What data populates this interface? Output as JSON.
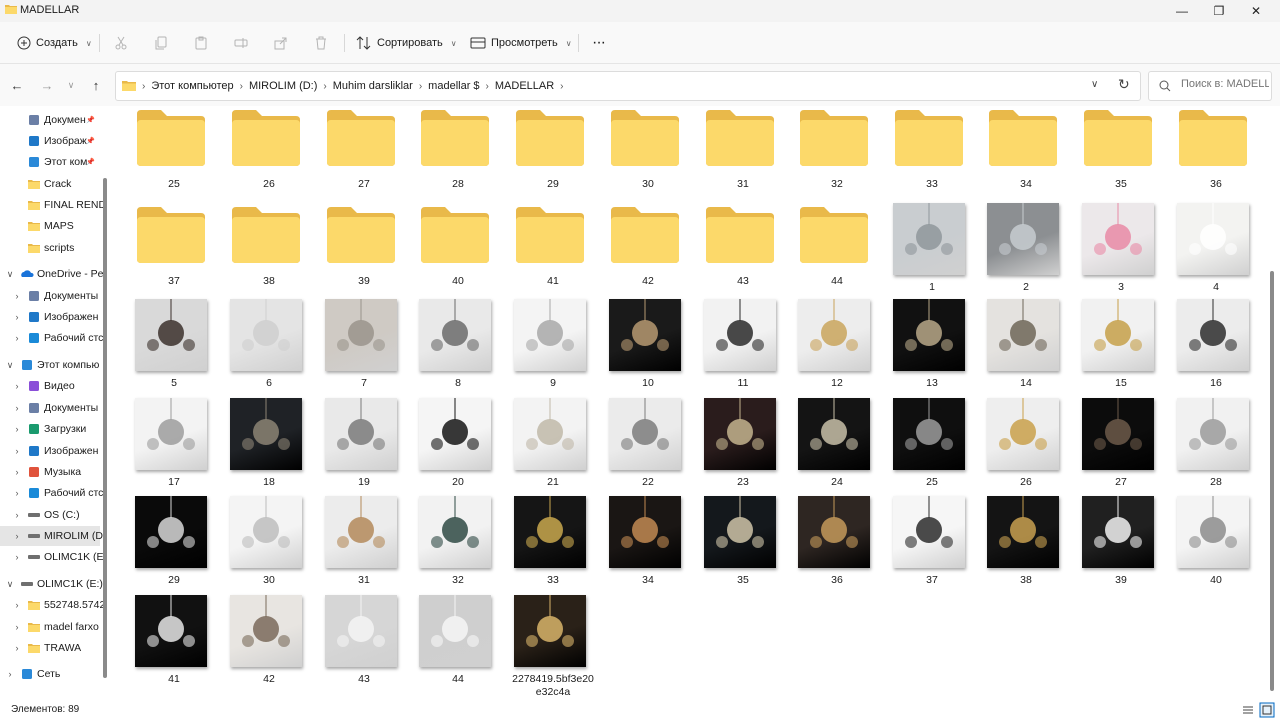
{
  "window": {
    "title": "MADELLAR",
    "controls": {
      "minimize": "—",
      "maximize": "❐",
      "close": "✕"
    }
  },
  "toolbar": {
    "new_label": "Создать",
    "sort_label": "Сортировать",
    "view_label": "Просмотреть",
    "more_label": "···",
    "icons": [
      "cut-icon",
      "copy-icon",
      "paste-icon",
      "rename-icon",
      "share-icon",
      "delete-icon"
    ]
  },
  "address": {
    "crumbs": [
      "Этот компьютер",
      "MIROLIM (D:)",
      "Muhim darsliklar",
      "madellar $",
      "MADELLAR"
    ],
    "search_placeholder": "Поиск в: MADELL..."
  },
  "sidebar": {
    "items": [
      {
        "label": "Докумен",
        "icon": "documents-icon",
        "pinned": true,
        "expand": ""
      },
      {
        "label": "Изображ",
        "icon": "pictures-icon",
        "pinned": true,
        "expand": ""
      },
      {
        "label": "Этот ком",
        "icon": "pc-icon",
        "pinned": true,
        "expand": ""
      },
      {
        "label": "Crack",
        "icon": "folder-icon",
        "pinned": false,
        "expand": ""
      },
      {
        "label": "FINAL REND",
        "icon": "folder-icon",
        "pinned": false,
        "expand": ""
      },
      {
        "label": "MAPS",
        "icon": "folder-icon",
        "pinned": false,
        "expand": ""
      },
      {
        "label": "scripts",
        "icon": "folder-icon",
        "pinned": false,
        "expand": ""
      },
      {
        "label": "OneDrive - Pe",
        "icon": "onedrive-icon",
        "pinned": false,
        "expand": "∨"
      },
      {
        "label": "Документы",
        "icon": "documents-icon",
        "pinned": false,
        "expand": "›"
      },
      {
        "label": "Изображен",
        "icon": "pictures-icon",
        "pinned": false,
        "expand": "›"
      },
      {
        "label": "Рабочий стс",
        "icon": "desktop-icon",
        "pinned": false,
        "expand": "›"
      },
      {
        "label": "Этот компью",
        "icon": "pc-icon",
        "pinned": false,
        "expand": "∨"
      },
      {
        "label": "Видео",
        "icon": "video-icon",
        "pinned": false,
        "expand": "›"
      },
      {
        "label": "Документы",
        "icon": "documents-icon",
        "pinned": false,
        "expand": "›"
      },
      {
        "label": "Загрузки",
        "icon": "downloads-icon",
        "pinned": false,
        "expand": "›"
      },
      {
        "label": "Изображен",
        "icon": "pictures-icon",
        "pinned": false,
        "expand": "›"
      },
      {
        "label": "Музыка",
        "icon": "music-icon",
        "pinned": false,
        "expand": "›"
      },
      {
        "label": "Рабочий стс",
        "icon": "desktop-icon",
        "pinned": false,
        "expand": "›"
      },
      {
        "label": "OS (C:)",
        "icon": "drive-icon",
        "pinned": false,
        "expand": "›"
      },
      {
        "label": "MIROLIM (D",
        "icon": "drive-icon",
        "pinned": false,
        "expand": "›",
        "selected": true
      },
      {
        "label": "OLIMC1K (E:",
        "icon": "drive-icon",
        "pinned": false,
        "expand": "›"
      },
      {
        "label": "OLIMC1K (E:)",
        "icon": "drive-icon",
        "pinned": false,
        "expand": "∨"
      },
      {
        "label": "552748.5742",
        "icon": "folder-icon",
        "pinned": false,
        "expand": "›"
      },
      {
        "label": "madel farxo",
        "icon": "folder-icon",
        "pinned": false,
        "expand": "›"
      },
      {
        "label": "TRAWA",
        "icon": "folder-icon",
        "pinned": false,
        "expand": "›"
      },
      {
        "label": "Сеть",
        "icon": "network-icon",
        "pinned": false,
        "expand": "›"
      }
    ]
  },
  "files": {
    "folders": [
      "25",
      "26",
      "27",
      "28",
      "29",
      "30",
      "31",
      "32",
      "33",
      "34",
      "35",
      "36",
      "37",
      "38",
      "39",
      "40",
      "41",
      "42",
      "43",
      "44"
    ],
    "images": [
      {
        "name": "1",
        "bg": "#c9cdd0",
        "accent": "#8f969b",
        "dark": false
      },
      {
        "name": "2",
        "bg": "#8c8f92",
        "accent": "#c7ccd0",
        "dark": false
      },
      {
        "name": "3",
        "bg": "#ece8ea",
        "accent": "#e98aa6",
        "dark": false
      },
      {
        "name": "4",
        "bg": "#f3f3f1",
        "accent": "#ffffff",
        "dark": false
      },
      {
        "name": "5",
        "bg": "#d9d9d9",
        "accent": "#3b302c",
        "dark": false
      },
      {
        "name": "6",
        "bg": "#e4e4e4",
        "accent": "#cfcfcf",
        "dark": false
      },
      {
        "name": "7",
        "bg": "#cfcac4",
        "accent": "#9a948c",
        "dark": false
      },
      {
        "name": "8",
        "bg": "#e9e9e9",
        "accent": "#6b6b6b",
        "dark": false
      },
      {
        "name": "9",
        "bg": "#f4f4f4",
        "accent": "#a8a8a8",
        "dark": false
      },
      {
        "name": "10",
        "bg": "#1a1a1a",
        "accent": "#b79a72",
        "dark": true
      },
      {
        "name": "11",
        "bg": "#f2f2f2",
        "accent": "#2a2a2a",
        "dark": false
      },
      {
        "name": "12",
        "bg": "#ededed",
        "accent": "#c9a45c",
        "dark": false
      },
      {
        "name": "13",
        "bg": "#111111",
        "accent": "#b8a888",
        "dark": true
      },
      {
        "name": "14",
        "bg": "#e4e2df",
        "accent": "#6e6658",
        "dark": false
      },
      {
        "name": "15",
        "bg": "#f1f1f1",
        "accent": "#c6a049",
        "dark": false
      },
      {
        "name": "16",
        "bg": "#ececec",
        "accent": "#2e2e2e",
        "dark": false
      },
      {
        "name": "17",
        "bg": "#f3f3f3",
        "accent": "#9c9c9c",
        "dark": false
      },
      {
        "name": "18",
        "bg": "#1f2226",
        "accent": "#8c8474",
        "dark": true
      },
      {
        "name": "19",
        "bg": "#e9e9e9",
        "accent": "#7a7a7a",
        "dark": false
      },
      {
        "name": "20",
        "bg": "#f5f5f5",
        "accent": "#151515",
        "dark": false
      },
      {
        "name": "21",
        "bg": "#f3f3f3",
        "accent": "#c0b8a8",
        "dark": false
      },
      {
        "name": "22",
        "bg": "#ebebeb",
        "accent": "#7c7c7c",
        "dark": false
      },
      {
        "name": "23",
        "bg": "#2a1c1c",
        "accent": "#c4b48e",
        "dark": true
      },
      {
        "name": "24",
        "bg": "#141414",
        "accent": "#c8c0a8",
        "dark": true
      },
      {
        "name": "25",
        "bg": "#0f0f0f",
        "accent": "#9c9c9c",
        "dark": true
      },
      {
        "name": "26",
        "bg": "#eeeeee",
        "accent": "#c9a04a",
        "dark": false
      },
      {
        "name": "27",
        "bg": "#0c0c0c",
        "accent": "#6d5a4a",
        "dark": true
      },
      {
        "name": "28",
        "bg": "#f1f1f1",
        "accent": "#9b9b9b",
        "dark": false
      },
      {
        "name": "29",
        "bg": "#0a0a0a",
        "accent": "#d8d8d8",
        "dark": true
      },
      {
        "name": "30",
        "bg": "#f4f4f4",
        "accent": "#bdbdbd",
        "dark": false
      },
      {
        "name": "31",
        "bg": "#ececec",
        "accent": "#b48a5a",
        "dark": false
      },
      {
        "name": "32",
        "bg": "#f2f2f2",
        "accent": "#2f4a44",
        "dark": false
      },
      {
        "name": "33",
        "bg": "#151515",
        "accent": "#c9a84e",
        "dark": true
      },
      {
        "name": "34",
        "bg": "#1a1614",
        "accent": "#c28a52",
        "dark": true
      },
      {
        "name": "35",
        "bg": "#14181c",
        "accent": "#cfc4a8",
        "dark": true
      },
      {
        "name": "36",
        "bg": "#2e2622",
        "accent": "#c49a5a",
        "dark": true
      },
      {
        "name": "37",
        "bg": "#f6f6f6",
        "accent": "#2b2b2b",
        "dark": false
      },
      {
        "name": "38",
        "bg": "#141414",
        "accent": "#c8a050",
        "dark": true
      },
      {
        "name": "39",
        "bg": "#202020",
        "accent": "#f2f2f2",
        "dark": true
      },
      {
        "name": "40",
        "bg": "#f4f4f4",
        "accent": "#8c8c8c",
        "dark": false
      },
      {
        "name": "41",
        "bg": "#111111",
        "accent": "#e6e6e6",
        "dark": true
      },
      {
        "name": "42",
        "bg": "#e8e5e1",
        "accent": "#7a6a5a",
        "dark": false
      },
      {
        "name": "43",
        "bg": "#d6d6d6",
        "accent": "#f4f4f4",
        "dark": false
      },
      {
        "name": "44",
        "bg": "#cfcfcf",
        "accent": "#f6f6f6",
        "dark": false
      },
      {
        "name": "2278419.5bf3e20e32c4a",
        "label_lines": [
          "2278419.5bf3e20",
          "e32c4a"
        ],
        "bg": "#2a2118",
        "accent": "#d8b46a",
        "dark": true
      }
    ]
  },
  "status": {
    "items_count": "Элементов: 89"
  },
  "colors": {
    "folder_back": "#e9b94a",
    "folder_front": "#fcd96a",
    "accent_blue": "#0067c0"
  }
}
